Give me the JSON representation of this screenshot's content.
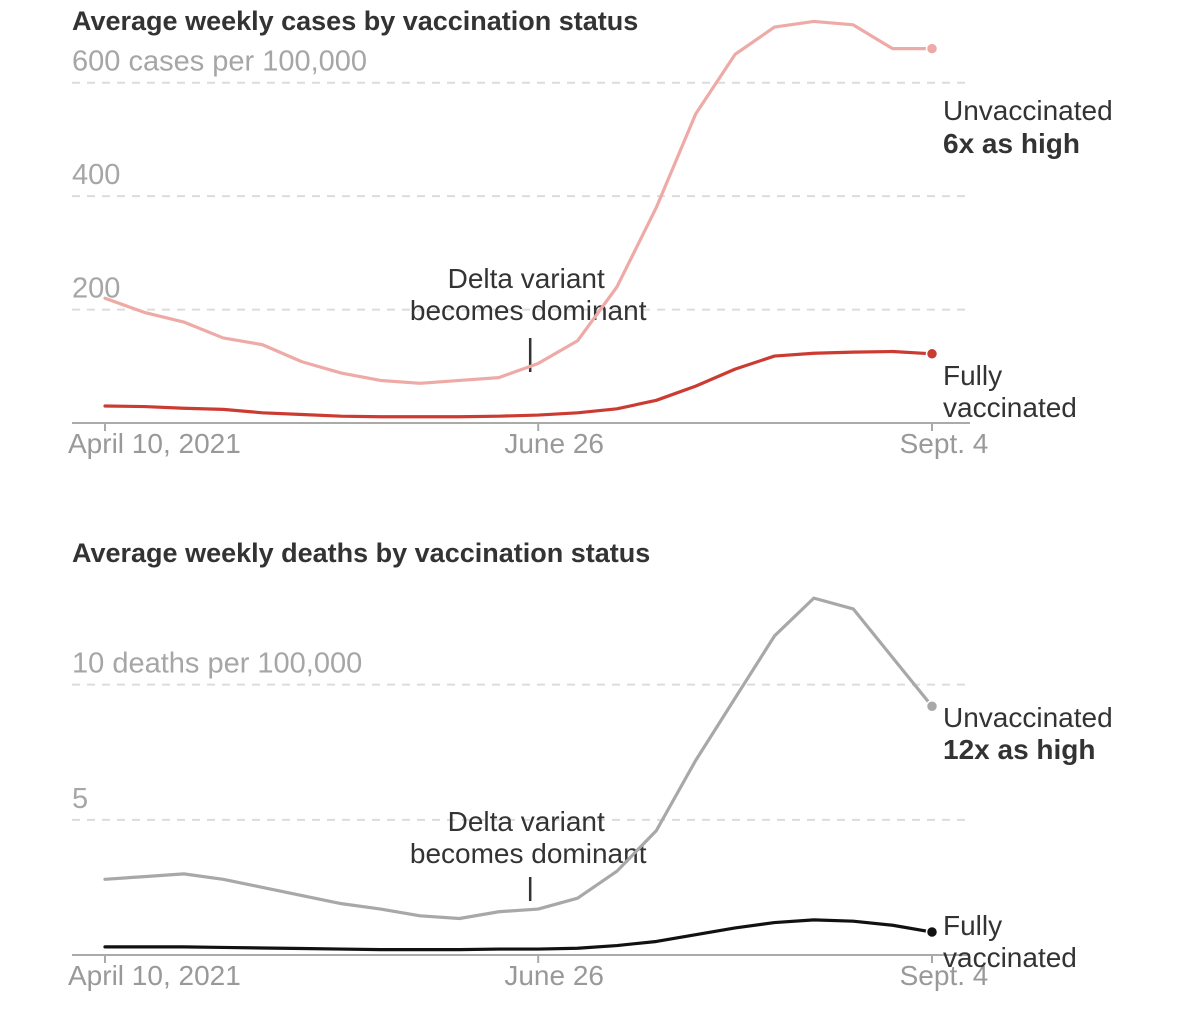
{
  "chart_data": [
    {
      "type": "line",
      "title": "Average weekly cases by vaccination status",
      "ylabel": "cases per 100,000",
      "ylim": [
        0,
        640
      ],
      "yticks": [
        {
          "value": 600,
          "label": "600 cases per 100,000"
        },
        {
          "value": 400,
          "label": "400"
        },
        {
          "value": 200,
          "label": "200"
        }
      ],
      "xticks": [
        {
          "value": 0,
          "label": "April 10, 2021"
        },
        {
          "value": 11,
          "label": "June 26"
        },
        {
          "value": 21,
          "label": "Sept. 4"
        }
      ],
      "annotation": {
        "x": 11,
        "lines": [
          "Delta variant",
          "becomes dominant"
        ]
      },
      "x": [
        0,
        1,
        2,
        3,
        4,
        5,
        6,
        7,
        8,
        9,
        10,
        11,
        12,
        13,
        14,
        15,
        16,
        17,
        18,
        19,
        20,
        21
      ],
      "series": [
        {
          "name": "Unvaccinated",
          "color": "#eeaaa6",
          "values": [
            220,
            195,
            178,
            150,
            138,
            108,
            88,
            75,
            70,
            75,
            80,
            105,
            145,
            240,
            380,
            545,
            650,
            698,
            708,
            702,
            660,
            660
          ],
          "label_lines": [
            "Unvaccinated",
            "6x as high"
          ]
        },
        {
          "name": "Fully vaccinated",
          "color": "#cc3b32",
          "values": [
            30,
            29,
            26,
            24,
            18,
            15,
            12,
            11,
            11,
            11,
            12,
            14,
            18,
            25,
            40,
            65,
            95,
            118,
            123,
            125,
            126,
            122
          ],
          "label_lines": [
            "Fully",
            "vaccinated"
          ]
        }
      ]
    },
    {
      "type": "line",
      "title": "Average weekly deaths by vaccination status",
      "ylabel": "deaths per 100,000",
      "ylim": [
        0,
        13.5
      ],
      "yticks": [
        {
          "value": 10,
          "label": "10 deaths per 100,000"
        },
        {
          "value": 5,
          "label": "5"
        }
      ],
      "xticks": [
        {
          "value": 0,
          "label": "April 10, 2021"
        },
        {
          "value": 11,
          "label": "June 26"
        },
        {
          "value": 21,
          "label": "Sept. 4"
        }
      ],
      "annotation": {
        "x": 11,
        "lines": [
          "Delta variant",
          "becomes dominant"
        ]
      },
      "x": [
        0,
        1,
        2,
        3,
        4,
        5,
        6,
        7,
        8,
        9,
        10,
        11,
        12,
        13,
        14,
        15,
        16,
        17,
        18,
        19,
        20,
        21
      ],
      "series": [
        {
          "name": "Unvaccinated",
          "color": "#a8a8a8",
          "values": [
            2.8,
            2.9,
            3.0,
            2.8,
            2.5,
            2.2,
            1.9,
            1.7,
            1.45,
            1.35,
            1.6,
            1.7,
            2.1,
            3.1,
            4.6,
            7.2,
            9.5,
            11.8,
            13.2,
            12.8,
            11.0,
            9.2
          ],
          "label_lines": [
            "Unvaccinated",
            "12x as high"
          ]
        },
        {
          "name": "Fully vaccinated",
          "color": "#111111",
          "values": [
            0.3,
            0.3,
            0.3,
            0.28,
            0.26,
            0.24,
            0.22,
            0.2,
            0.2,
            0.2,
            0.22,
            0.22,
            0.25,
            0.35,
            0.5,
            0.75,
            1.0,
            1.2,
            1.3,
            1.25,
            1.1,
            0.85
          ],
          "label_lines": [
            "Fully",
            "vaccinated"
          ]
        }
      ]
    }
  ]
}
